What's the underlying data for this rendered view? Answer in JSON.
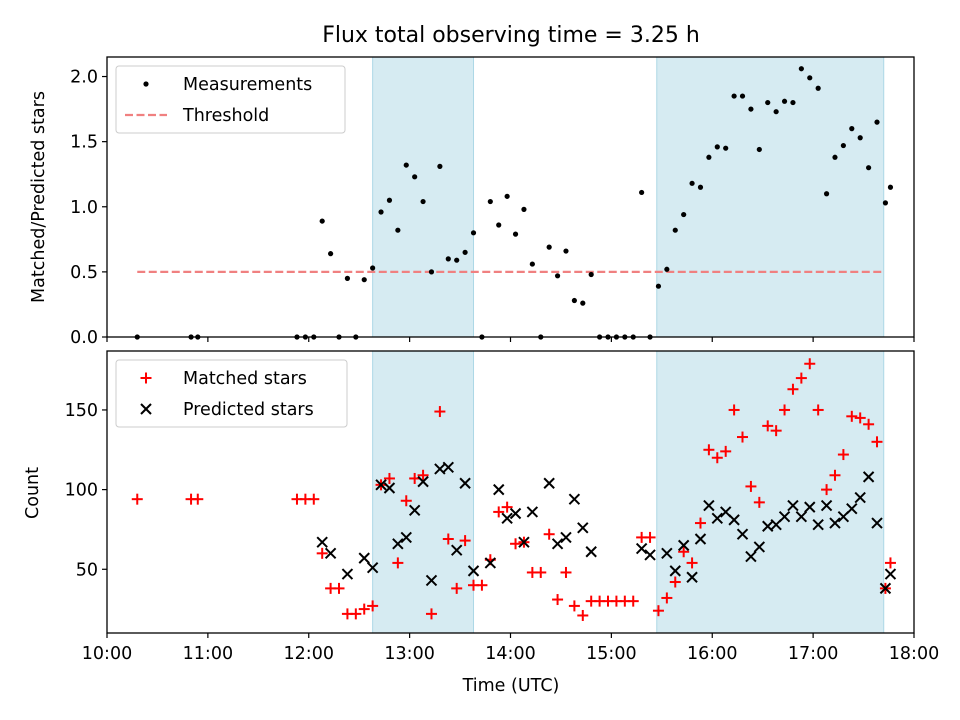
{
  "title": "Flux total observing time = 3.25 h",
  "chart_data": [
    {
      "type": "scatter",
      "ylabel": "Matched/Predicted stars",
      "xlabel": "",
      "xlim": [
        "10:00",
        "18:00"
      ],
      "ylim": [
        0,
        2.15
      ],
      "yticks": [
        0.0,
        0.5,
        1.0,
        1.5,
        2.0
      ],
      "ytick_labels": [
        "0.0",
        "0.5",
        "1.0",
        "1.5",
        "2.0"
      ],
      "legend_position": "upper-left",
      "threshold": {
        "value": 0.5,
        "x_range": [
          "10:18",
          "17:42"
        ]
      },
      "shaded_intervals": [
        [
          "12:38",
          "13:38"
        ],
        [
          "15:27",
          "17:42"
        ]
      ],
      "series": [
        {
          "name": "Measurements",
          "marker": "dot",
          "color": "#000000",
          "points": [
            [
              "10:18",
              0.0
            ],
            [
              "10:50",
              0.0
            ],
            [
              "10:54",
              0.0
            ],
            [
              "11:53",
              0.0
            ],
            [
              "11:58",
              0.0
            ],
            [
              "12:03",
              0.0
            ],
            [
              "12:08",
              0.89
            ],
            [
              "12:13",
              0.64
            ],
            [
              "12:18",
              0.0
            ],
            [
              "12:23",
              0.45
            ],
            [
              "12:28",
              0.0
            ],
            [
              "12:33",
              0.44
            ],
            [
              "12:38",
              0.53
            ],
            [
              "12:43",
              0.96
            ],
            [
              "12:48",
              1.05
            ],
            [
              "12:53",
              0.82
            ],
            [
              "12:58",
              1.32
            ],
            [
              "13:03",
              1.23
            ],
            [
              "13:08",
              1.04
            ],
            [
              "13:13",
              0.5
            ],
            [
              "13:18",
              1.31
            ],
            [
              "13:23",
              0.6
            ],
            [
              "13:28",
              0.59
            ],
            [
              "13:33",
              0.65
            ],
            [
              "13:38",
              0.8
            ],
            [
              "13:43",
              0.0
            ],
            [
              "13:48",
              1.04
            ],
            [
              "13:53",
              0.86
            ],
            [
              "13:58",
              1.08
            ],
            [
              "14:03",
              0.79
            ],
            [
              "14:08",
              0.98
            ],
            [
              "14:13",
              0.56
            ],
            [
              "14:18",
              0.0
            ],
            [
              "14:23",
              0.69
            ],
            [
              "14:28",
              0.47
            ],
            [
              "14:33",
              0.66
            ],
            [
              "14:38",
              0.28
            ],
            [
              "14:43",
              0.26
            ],
            [
              "14:48",
              0.48
            ],
            [
              "14:53",
              0.0
            ],
            [
              "14:58",
              0.0
            ],
            [
              "15:03",
              0.0
            ],
            [
              "15:08",
              0.0
            ],
            [
              "15:13",
              0.0
            ],
            [
              "15:18",
              1.11
            ],
            [
              "15:23",
              0.0
            ],
            [
              "15:28",
              0.39
            ],
            [
              "15:33",
              0.52
            ],
            [
              "15:38",
              0.82
            ],
            [
              "15:43",
              0.94
            ],
            [
              "15:48",
              1.18
            ],
            [
              "15:53",
              1.15
            ],
            [
              "15:58",
              1.38
            ],
            [
              "16:03",
              1.46
            ],
            [
              "16:08",
              1.45
            ],
            [
              "16:13",
              1.85
            ],
            [
              "16:18",
              1.85
            ],
            [
              "16:23",
              1.75
            ],
            [
              "16:28",
              1.44
            ],
            [
              "16:33",
              1.8
            ],
            [
              "16:38",
              1.73
            ],
            [
              "16:43",
              1.81
            ],
            [
              "16:48",
              1.8
            ],
            [
              "16:53",
              2.06
            ],
            [
              "16:58",
              1.99
            ],
            [
              "17:03",
              1.91
            ],
            [
              "17:08",
              1.1
            ],
            [
              "17:13",
              1.38
            ],
            [
              "17:18",
              1.47
            ],
            [
              "17:23",
              1.6
            ],
            [
              "17:28",
              1.53
            ],
            [
              "17:33",
              1.3
            ],
            [
              "17:38",
              1.65
            ],
            [
              "17:43",
              1.03
            ],
            [
              "17:46",
              1.15
            ]
          ]
        },
        {
          "name": "Threshold",
          "line_style": "dashed",
          "color": "#f08080"
        }
      ]
    },
    {
      "type": "scatter",
      "ylabel": "Count",
      "xlabel": "Time (UTC)",
      "xlim": [
        "10:00",
        "18:00"
      ],
      "ylim": [
        10,
        187
      ],
      "yticks": [
        50,
        100,
        150
      ],
      "ytick_labels": [
        "50",
        "100",
        "150"
      ],
      "xtick_labels": [
        "10:00",
        "11:00",
        "12:00",
        "13:00",
        "14:00",
        "15:00",
        "16:00",
        "17:00",
        "18:00"
      ],
      "legend_position": "upper-left",
      "shaded_intervals": [
        [
          "12:38",
          "13:38"
        ],
        [
          "15:27",
          "17:42"
        ]
      ],
      "series": [
        {
          "name": "Matched stars",
          "marker": "plus",
          "color": "#ff0000",
          "points": [
            [
              "10:18",
              94
            ],
            [
              "10:50",
              94
            ],
            [
              "10:54",
              94
            ],
            [
              "11:53",
              94
            ],
            [
              "11:58",
              94
            ],
            [
              "12:03",
              94
            ],
            [
              "12:08",
              60
            ],
            [
              "12:13",
              38
            ],
            [
              "12:18",
              38
            ],
            [
              "12:23",
              22
            ],
            [
              "12:28",
              22
            ],
            [
              "12:33",
              25
            ],
            [
              "12:38",
              27
            ],
            [
              "12:43",
              103
            ],
            [
              "12:48",
              107
            ],
            [
              "12:53",
              54
            ],
            [
              "12:58",
              93
            ],
            [
              "13:03",
              107
            ],
            [
              "13:08",
              109
            ],
            [
              "13:13",
              22
            ],
            [
              "13:18",
              149
            ],
            [
              "13:23",
              69
            ],
            [
              "13:28",
              38
            ],
            [
              "13:33",
              68
            ],
            [
              "13:38",
              40
            ],
            [
              "13:43",
              40
            ],
            [
              "13:48",
              56
            ],
            [
              "13:53",
              86
            ],
            [
              "13:58",
              89
            ],
            [
              "14:03",
              66
            ],
            [
              "14:08",
              67
            ],
            [
              "14:13",
              48
            ],
            [
              "14:18",
              48
            ],
            [
              "14:23",
              72
            ],
            [
              "14:28",
              31
            ],
            [
              "14:33",
              48
            ],
            [
              "14:38",
              27
            ],
            [
              "14:43",
              21
            ],
            [
              "14:48",
              30
            ],
            [
              "14:53",
              30
            ],
            [
              "14:58",
              30
            ],
            [
              "15:03",
              30
            ],
            [
              "15:08",
              30
            ],
            [
              "15:13",
              30
            ],
            [
              "15:18",
              70
            ],
            [
              "15:23",
              70
            ],
            [
              "15:28",
              24
            ],
            [
              "15:33",
              32
            ],
            [
              "15:38",
              42
            ],
            [
              "15:43",
              61
            ],
            [
              "15:48",
              54
            ],
            [
              "15:53",
              79
            ],
            [
              "15:58",
              125
            ],
            [
              "16:03",
              120
            ],
            [
              "16:08",
              124
            ],
            [
              "16:13",
              150
            ],
            [
              "16:18",
              133
            ],
            [
              "16:23",
              102
            ],
            [
              "16:28",
              92
            ],
            [
              "16:33",
              140
            ],
            [
              "16:38",
              137
            ],
            [
              "16:43",
              150
            ],
            [
              "16:48",
              163
            ],
            [
              "16:53",
              170
            ],
            [
              "16:58",
              179
            ],
            [
              "17:03",
              150
            ],
            [
              "17:08",
              100
            ],
            [
              "17:13",
              109
            ],
            [
              "17:18",
              122
            ],
            [
              "17:23",
              146
            ],
            [
              "17:28",
              145
            ],
            [
              "17:33",
              141
            ],
            [
              "17:38",
              130
            ],
            [
              "17:43",
              38
            ],
            [
              "17:46",
              54
            ]
          ]
        },
        {
          "name": "Predicted stars",
          "marker": "x",
          "color": "#000000",
          "points": [
            [
              "12:08",
              67
            ],
            [
              "12:13",
              60
            ],
            [
              "12:23",
              47
            ],
            [
              "12:33",
              57
            ],
            [
              "12:38",
              51
            ],
            [
              "12:43",
              103
            ],
            [
              "12:48",
              101
            ],
            [
              "12:53",
              66
            ],
            [
              "12:58",
              70
            ],
            [
              "13:03",
              87
            ],
            [
              "13:08",
              105
            ],
            [
              "13:13",
              43
            ],
            [
              "13:18",
              113
            ],
            [
              "13:23",
              114
            ],
            [
              "13:28",
              62
            ],
            [
              "13:33",
              104
            ],
            [
              "13:38",
              49
            ],
            [
              "13:48",
              54
            ],
            [
              "13:53",
              100
            ],
            [
              "13:58",
              82
            ],
            [
              "14:03",
              85
            ],
            [
              "14:08",
              67
            ],
            [
              "14:13",
              86
            ],
            [
              "14:23",
              104
            ],
            [
              "14:28",
              66
            ],
            [
              "14:33",
              70
            ],
            [
              "14:38",
              94
            ],
            [
              "14:43",
              76
            ],
            [
              "14:48",
              61
            ],
            [
              "15:18",
              63
            ],
            [
              "15:23",
              59
            ],
            [
              "15:33",
              60
            ],
            [
              "15:38",
              49
            ],
            [
              "15:43",
              65
            ],
            [
              "15:48",
              45
            ],
            [
              "15:53",
              69
            ],
            [
              "15:58",
              90
            ],
            [
              "16:03",
              82
            ],
            [
              "16:08",
              86
            ],
            [
              "16:13",
              81
            ],
            [
              "16:18",
              72
            ],
            [
              "16:23",
              58
            ],
            [
              "16:28",
              64
            ],
            [
              "16:33",
              77
            ],
            [
              "16:38",
              78
            ],
            [
              "16:43",
              83
            ],
            [
              "16:48",
              90
            ],
            [
              "16:53",
              83
            ],
            [
              "16:58",
              89
            ],
            [
              "17:03",
              78
            ],
            [
              "17:08",
              90
            ],
            [
              "17:13",
              79
            ],
            [
              "17:18",
              83
            ],
            [
              "17:23",
              88
            ],
            [
              "17:28",
              95
            ],
            [
              "17:33",
              108
            ],
            [
              "17:38",
              79
            ],
            [
              "17:43",
              38
            ],
            [
              "17:46",
              47
            ]
          ]
        }
      ]
    }
  ]
}
